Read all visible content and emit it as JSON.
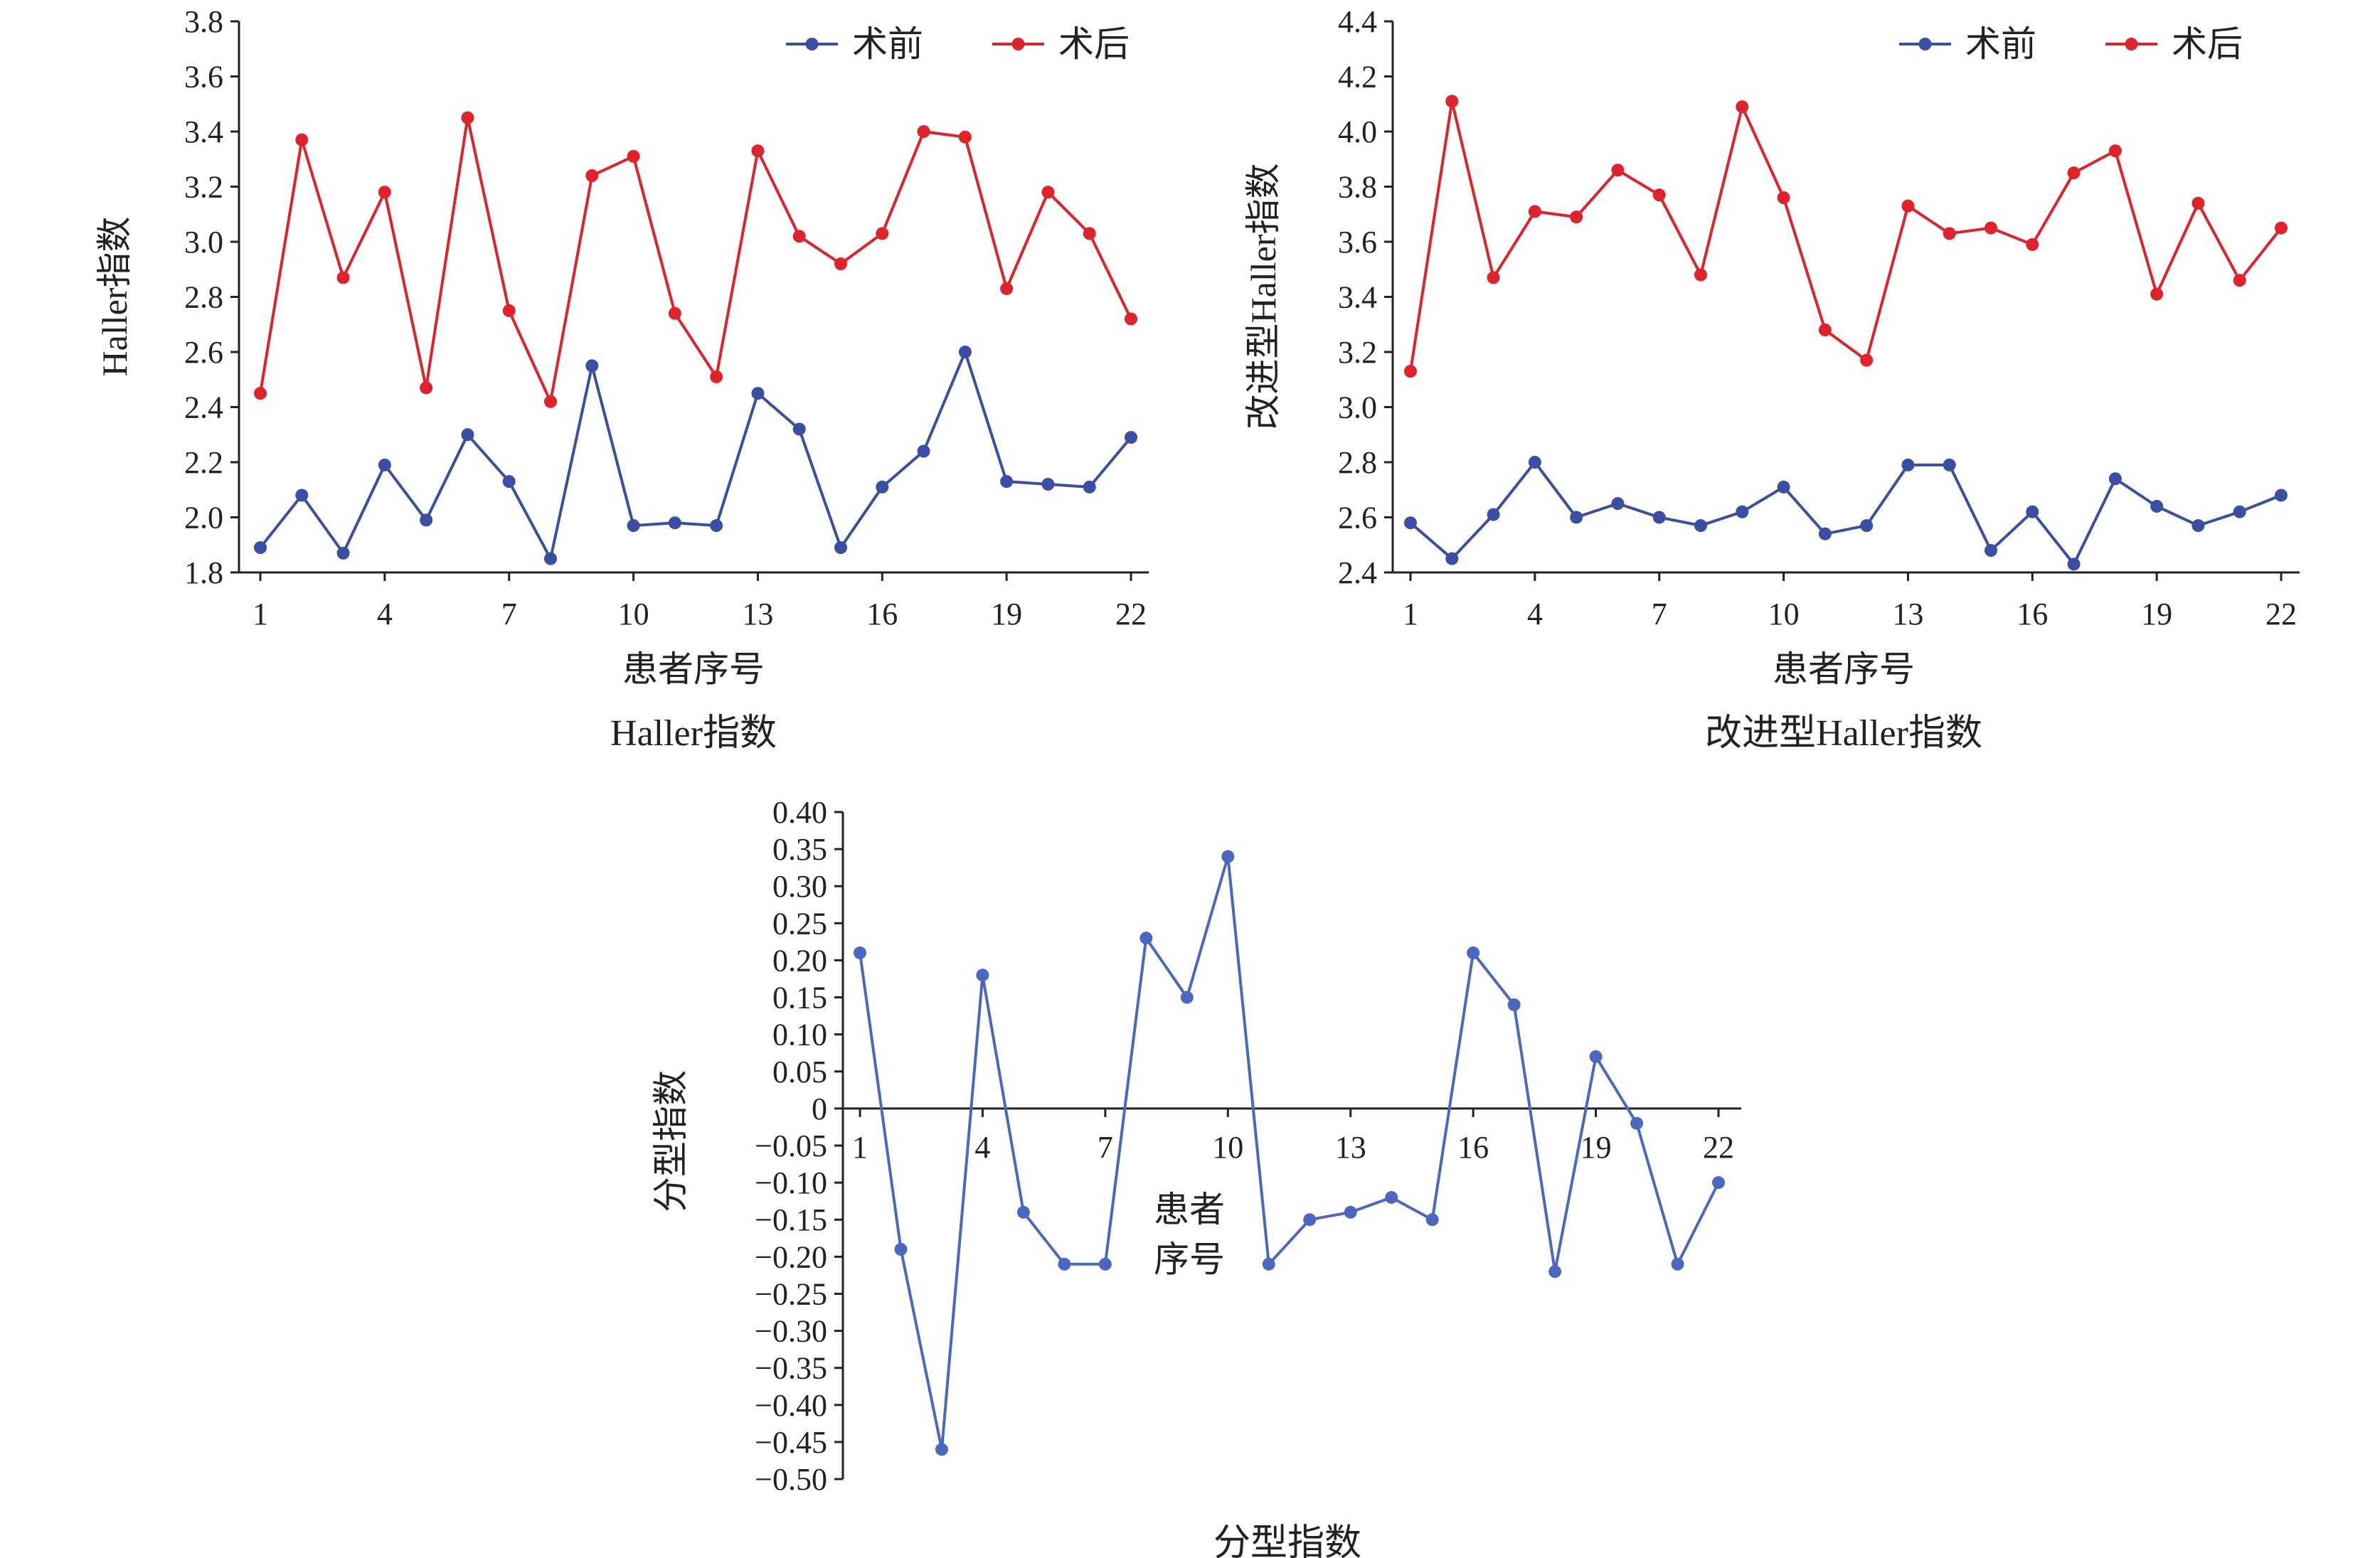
{
  "chart_data": [
    {
      "type": "line",
      "title": "Haller指数",
      "xlabel": "患者序号",
      "ylabel": "Haller指数",
      "x": [
        1,
        2,
        3,
        4,
        5,
        6,
        7,
        8,
        9,
        10,
        11,
        12,
        13,
        14,
        15,
        16,
        17,
        18,
        19,
        20,
        21,
        22
      ],
      "xticks": [
        "1",
        "4",
        "7",
        "10",
        "13",
        "16",
        "19",
        "22"
      ],
      "ylim": [
        1.8,
        3.8
      ],
      "yticks": [
        "1.8",
        "2.0",
        "2.2",
        "2.4",
        "2.6",
        "2.8",
        "3.0",
        "3.2",
        "3.4",
        "3.6",
        "3.8"
      ],
      "grid": false,
      "legend": "top-right",
      "series": [
        {
          "name": "术前",
          "color": "#3a4fa3",
          "values": [
            1.89,
            2.08,
            1.87,
            2.19,
            1.99,
            2.3,
            2.13,
            1.85,
            2.55,
            1.97,
            1.98,
            1.97,
            2.45,
            2.32,
            1.89,
            2.11,
            2.24,
            2.6,
            2.13,
            2.12,
            2.11,
            2.29
          ]
        },
        {
          "name": "术后",
          "color": "#e0222b",
          "values": [
            2.45,
            3.37,
            2.87,
            3.18,
            2.47,
            3.45,
            2.75,
            2.42,
            3.24,
            3.31,
            2.74,
            2.51,
            3.33,
            3.02,
            2.92,
            3.03,
            3.4,
            3.38,
            2.83,
            3.18,
            3.03,
            2.72
          ]
        }
      ]
    },
    {
      "type": "line",
      "title": "改进型Haller指数",
      "xlabel": "患者序号",
      "ylabel": "改进型Haller指数",
      "x": [
        1,
        2,
        3,
        4,
        5,
        6,
        7,
        8,
        9,
        10,
        11,
        12,
        13,
        14,
        15,
        16,
        17,
        18,
        19,
        20,
        21,
        22
      ],
      "xticks": [
        "1",
        "4",
        "7",
        "10",
        "13",
        "16",
        "19",
        "22"
      ],
      "ylim": [
        2.4,
        4.4
      ],
      "yticks": [
        "2.4",
        "2.6",
        "2.8",
        "3.0",
        "3.2",
        "3.4",
        "3.6",
        "3.8",
        "4.0",
        "4.2",
        "4.4"
      ],
      "grid": false,
      "legend": "top-right",
      "series": [
        {
          "name": "术前",
          "color": "#3a4fa3",
          "values": [
            2.58,
            2.45,
            2.61,
            2.8,
            2.6,
            2.65,
            2.6,
            2.57,
            2.62,
            2.71,
            2.54,
            2.57,
            2.79,
            2.79,
            2.48,
            2.62,
            2.43,
            2.74,
            2.64,
            2.57,
            2.62,
            2.68
          ]
        },
        {
          "name": "术后",
          "color": "#e0222b",
          "values": [
            3.13,
            4.11,
            3.47,
            3.71,
            3.69,
            3.86,
            3.77,
            3.48,
            4.09,
            3.76,
            3.28,
            3.17,
            3.73,
            3.63,
            3.65,
            3.59,
            3.85,
            3.93,
            3.41,
            3.74,
            3.46,
            3.65
          ]
        }
      ]
    },
    {
      "type": "line",
      "title": "分型指数",
      "xlabel": "患者序号",
      "ylabel": "分型指数",
      "x": [
        1,
        2,
        3,
        4,
        5,
        6,
        7,
        8,
        9,
        10,
        11,
        12,
        13,
        14,
        15,
        16,
        17,
        18,
        19,
        20,
        21,
        22
      ],
      "xticks": [
        "1",
        "4",
        "7",
        "10",
        "13",
        "16",
        "19",
        "22"
      ],
      "ylim": [
        -0.5,
        0.4
      ],
      "yticks": [
        "0.40",
        "0.35",
        "0.30",
        "0.25",
        "0.20",
        "0.15",
        "0.10",
        "0.05",
        "0",
        "−0.05",
        "−0.10",
        "−0.15",
        "−0.20",
        "−0.25",
        "−0.30",
        "−0.35",
        "−0.40",
        "−0.45",
        "−0.50"
      ],
      "grid": false,
      "legend": "none",
      "series": [
        {
          "color": "#4a68c0",
          "values": [
            0.21,
            -0.19,
            -0.46,
            0.18,
            -0.14,
            -0.21,
            -0.21,
            0.23,
            0.15,
            0.34,
            -0.21,
            -0.15,
            -0.14,
            -0.12,
            -0.15,
            0.21,
            0.14,
            -0.22,
            0.07,
            -0.02,
            -0.21,
            -0.1
          ]
        }
      ]
    }
  ]
}
